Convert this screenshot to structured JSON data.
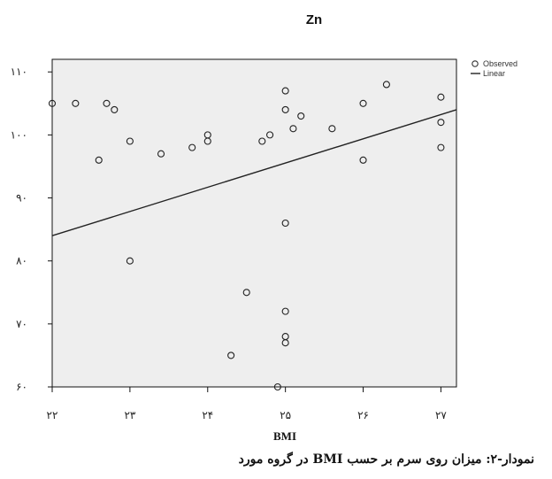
{
  "caption": "نمودار-۲: میزان روی سرم بر حسب BMI در گروه مورد",
  "chart_data": {
    "type": "scatter",
    "title": "Zn",
    "xlabel": "BMI",
    "ylabel": "",
    "xlim": [
      22,
      27.2
    ],
    "ylim": [
      60,
      112
    ],
    "xticks": [
      22,
      23,
      24,
      25,
      26,
      27
    ],
    "xtick_labels": [
      "۲۲",
      "۲۳",
      "۲۴",
      "۲۵",
      "۲۶",
      "۲۷"
    ],
    "yticks": [
      60,
      70,
      80,
      90,
      100,
      110
    ],
    "ytick_labels": [
      "۶۰",
      "۷۰",
      "۸۰",
      "۹۰",
      "۱۰۰",
      "۱۱۰"
    ],
    "grid": false,
    "plot_background": "#eeeeee",
    "legend_position": "right-top",
    "series": [
      {
        "name": "Observed",
        "marker": "open-circle",
        "points": [
          [
            22.0,
            105
          ],
          [
            22.3,
            105
          ],
          [
            22.6,
            96
          ],
          [
            22.7,
            105
          ],
          [
            22.8,
            104
          ],
          [
            23.0,
            99
          ],
          [
            23.0,
            80
          ],
          [
            23.4,
            97
          ],
          [
            23.8,
            98
          ],
          [
            24.0,
            100
          ],
          [
            24.0,
            99
          ],
          [
            24.3,
            65
          ],
          [
            24.5,
            75
          ],
          [
            24.7,
            99
          ],
          [
            24.8,
            100
          ],
          [
            24.9,
            60
          ],
          [
            25.0,
            107
          ],
          [
            25.0,
            104
          ],
          [
            25.0,
            86
          ],
          [
            25.0,
            72
          ],
          [
            25.0,
            68
          ],
          [
            25.0,
            67
          ],
          [
            25.1,
            101
          ],
          [
            25.2,
            103
          ],
          [
            25.6,
            101
          ],
          [
            26.0,
            105
          ],
          [
            26.0,
            96
          ],
          [
            26.3,
            108
          ],
          [
            27.0,
            106
          ],
          [
            27.0,
            102
          ],
          [
            27.0,
            98
          ]
        ]
      },
      {
        "name": "Linear",
        "type": "line",
        "points": [
          [
            22.0,
            84
          ],
          [
            27.2,
            104
          ]
        ]
      }
    ]
  }
}
